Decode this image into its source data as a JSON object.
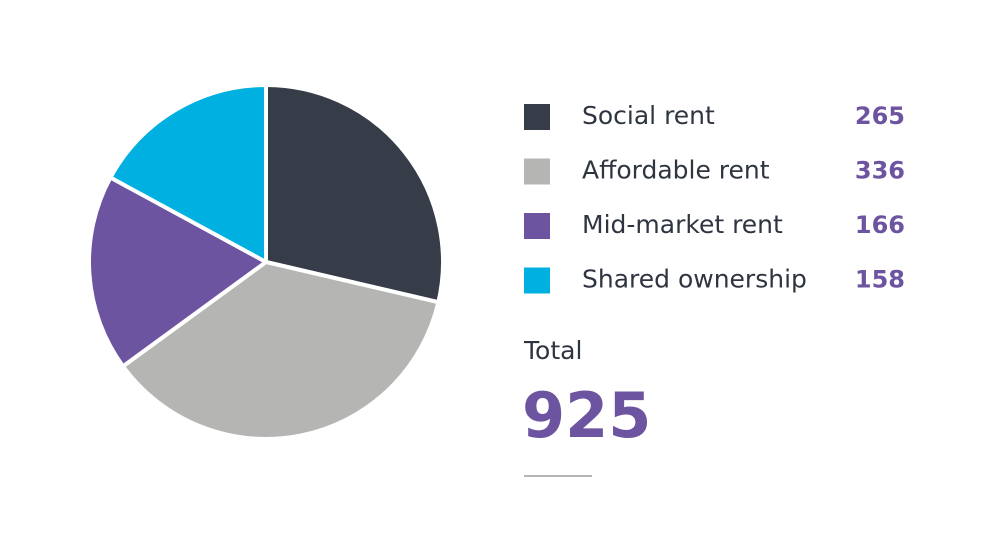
{
  "chart_data": {
    "type": "pie",
    "categories": [
      "Social rent",
      "Affordable rent",
      "Mid-market rent",
      "Shared ownership"
    ],
    "values": [
      265,
      336,
      166,
      158
    ],
    "colors": [
      "#363d48",
      "#b5b5b4",
      "#6c54a0",
      "#00b0e0"
    ],
    "total_label": "Total",
    "total": 925
  }
}
